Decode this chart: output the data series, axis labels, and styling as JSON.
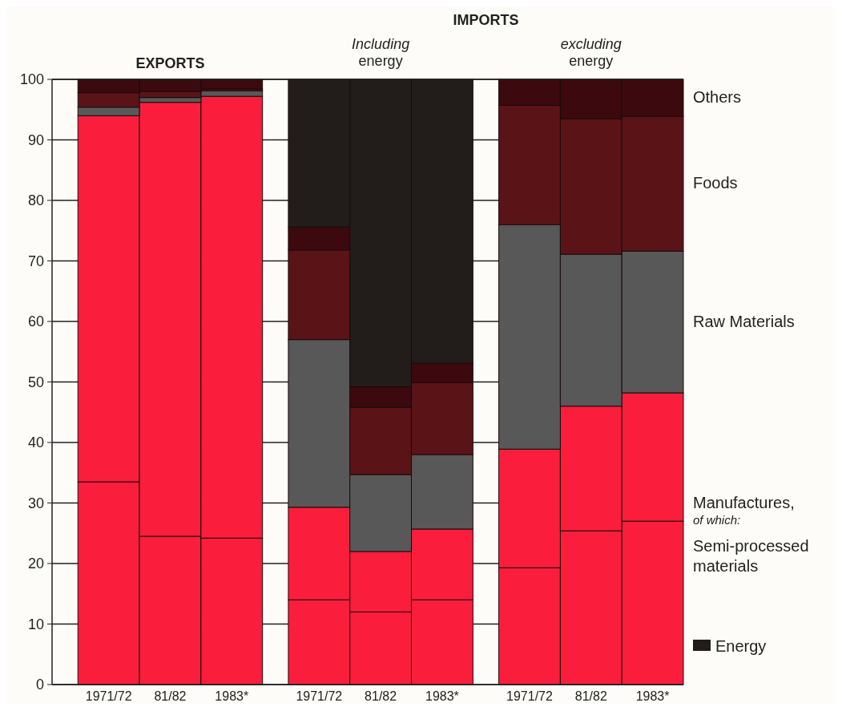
{
  "chart_data": {
    "type": "bar",
    "stacked": true,
    "categories": [
      null,
      "1971/72",
      "81/82",
      "1983*",
      null,
      "1971/72",
      "81/82",
      "1983*",
      null,
      "1971/72",
      "81/82",
      "1983*"
    ],
    "series": [
      {
        "name": "Semi-processed materials",
        "color": "#fa1e3c",
        "values": [
          null,
          33.5,
          24.5,
          24.2,
          null,
          14,
          12,
          14,
          null,
          19.3,
          25.4,
          27.0
        ]
      },
      {
        "name": "Manufactures,",
        "color": "#fa1e3c",
        "values": [
          null,
          60.5,
          71.7,
          73.0,
          null,
          15.3,
          10,
          11.7,
          null,
          19.6,
          20.6,
          21.2
        ]
      },
      {
        "name": "Raw Materials",
        "color": "#585858",
        "values": [
          null,
          1.4,
          0.8,
          0.9,
          null,
          27.7,
          12.7,
          12.3,
          null,
          37.1,
          25.1,
          23.4
        ]
      },
      {
        "name": "Foods",
        "color": "#5a1418",
        "values": [
          null,
          2.4,
          1.0,
          0.3,
          null,
          14.8,
          11.1,
          11.9,
          null,
          19.7,
          22.4,
          22.3
        ]
      },
      {
        "name": "Others",
        "color": "#3c0a0e",
        "values": [
          null,
          2.2,
          2.0,
          1.6,
          null,
          3.8,
          3.4,
          3.2,
          null,
          4.3,
          6.5,
          6.1
        ]
      },
      {
        "name": "Energy",
        "color": "#221d1b",
        "values": [
          null,
          null,
          null,
          null,
          null,
          24.4,
          50.8,
          46.9,
          null,
          null,
          null,
          null
        ]
      }
    ],
    "ylim": [
      0,
      100
    ],
    "yticks": [
      0,
      10,
      20,
      30,
      40,
      50,
      60,
      70,
      80,
      90,
      100
    ],
    "grid": "y",
    "legend": "bottom right",
    "annotations": [
      "EXPORTS",
      "IMPORTS",
      "Including energy",
      "excluding energy",
      "of which:"
    ]
  }
}
